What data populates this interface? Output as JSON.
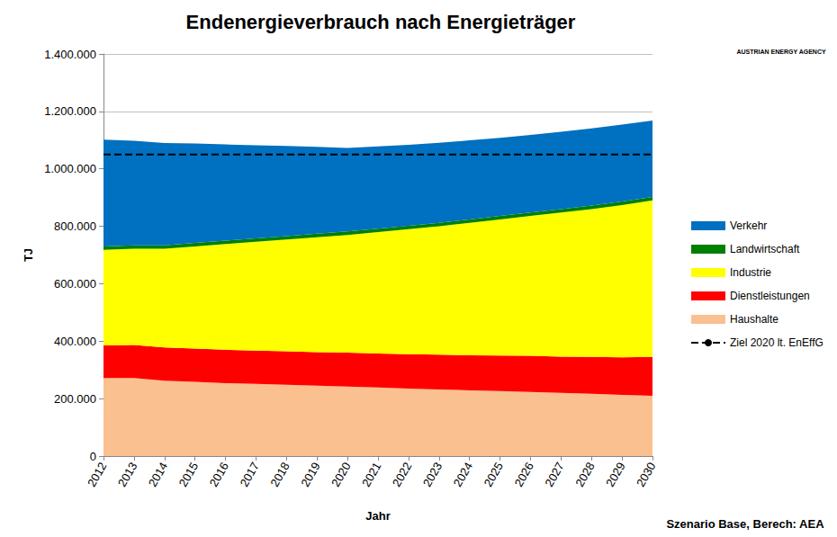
{
  "chart_data": {
    "type": "area",
    "title": "Endenergieverbrauch nach Energieträger",
    "x_label": "Jahr",
    "y_label": "TJ",
    "annotations": [
      "Szenario Base, Berech: AEA",
      "AUSTRIAN ENERGY AGENCY"
    ],
    "categories": [
      "2012",
      "2013",
      "2014",
      "2015",
      "2016",
      "2017",
      "2018",
      "2019",
      "2020",
      "2021",
      "2022",
      "2023",
      "2024",
      "2025",
      "2026",
      "2027",
      "2028",
      "2029",
      "2030"
    ],
    "stacked": true,
    "grid": true,
    "legend": "right",
    "ylim": [
      0,
      1400000
    ],
    "yticks": [
      0,
      {
        "value": 200000,
        "label": "200.000"
      },
      {
        "value": 400000,
        "label": "400.000"
      },
      {
        "value": 600000,
        "label": "600.000"
      },
      {
        "value": 800000,
        "label": "800.000"
      },
      {
        "value": 1000000,
        "label": "1.000.000"
      },
      {
        "value": 1200000,
        "label": "1.200.000"
      },
      {
        "value": 1400000,
        "label": "1.400.000"
      }
    ],
    "series": [
      {
        "name": "Haushalte",
        "type": "area",
        "color": "#fac090",
        "values": [
          272000,
          272000,
          262000,
          258000,
          254000,
          251000,
          248000,
          245000,
          242000,
          239000,
          235000,
          232000,
          229000,
          226000,
          223000,
          220000,
          217000,
          213000,
          210000
        ]
      },
      {
        "name": "Dienstleistungen",
        "type": "area",
        "color": "#ff0000",
        "values": [
          113000,
          115000,
          116000,
          116000,
          116000,
          116000,
          117000,
          117000,
          118000,
          118000,
          120000,
          121000,
          122000,
          124000,
          126000,
          126000,
          128000,
          131000,
          135000
        ]
      },
      {
        "name": "Industrie",
        "type": "area",
        "color": "#ffff00",
        "values": [
          333000,
          335000,
          344000,
          356000,
          368000,
          379000,
          389000,
          400000,
          410000,
          423000,
          435000,
          447000,
          461000,
          474000,
          487000,
          502000,
          515000,
          530000,
          545000
        ]
      },
      {
        "name": "Landwirtschaft",
        "type": "area",
        "color": "#008000",
        "values": [
          12000,
          12000,
          12000,
          12000,
          12000,
          12000,
          12000,
          12000,
          12000,
          12000,
          12000,
          12000,
          12000,
          12000,
          12000,
          12000,
          12000,
          12000,
          12000
        ]
      },
      {
        "name": "Verkehr",
        "type": "area",
        "color": "#0070c0",
        "values": [
          372000,
          364000,
          356000,
          346000,
          335000,
          324000,
          314000,
          303000,
          291000,
          286000,
          282000,
          279000,
          275000,
          272000,
          270000,
          269000,
          269000,
          268000,
          266000
        ]
      },
      {
        "name": "Ziel 2020 lt. EnEffG",
        "type": "line",
        "color": "#000000",
        "line_style": "dashed",
        "values": [
          1050000,
          1050000,
          1050000,
          1050000,
          1050000,
          1050000,
          1050000,
          1050000,
          1050000,
          1050000,
          1050000,
          1050000,
          1050000,
          1050000,
          1050000,
          1050000,
          1050000,
          1050000,
          1050000
        ]
      }
    ]
  }
}
